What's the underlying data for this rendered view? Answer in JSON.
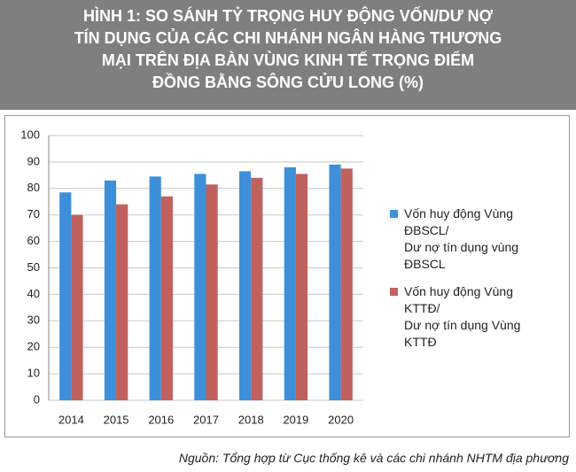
{
  "chart_data": {
    "type": "bar",
    "title": "HÌNH 1: SO SÁNH TỶ TRỌNG HUY ĐỘNG VỐN/DƯ NỢ\nTÍN DỤNG CỦA CÁC CHI NHÁNH NGÂN HÀNG THƯƠNG\nMẠI TRÊN ĐỊA BÀN VÙNG KINH TẾ TRỌNG ĐIỂM\nĐỒNG BẰNG SÔNG CỬU LONG (%)",
    "categories": [
      "2014",
      "2015",
      "2016",
      "2017",
      "2018",
      "2019",
      "2020"
    ],
    "series": [
      {
        "name": "Vốn huy động Vùng\nĐBSCL/\n  Dư nợ tín dụng vùng\nĐBSCL",
        "color": "#3d8fd9",
        "values": [
          78.5,
          83,
          84.5,
          85.5,
          86.5,
          88,
          89
        ]
      },
      {
        "name": "Vốn huy động Vùng\nKTTĐ/\n  Dư nợ tín dụng Vùng\nKTTĐ",
        "color": "#c0615e",
        "values": [
          70,
          74,
          77,
          81.5,
          84,
          85.5,
          87.5
        ]
      }
    ],
    "ylim": [
      0,
      100
    ],
    "yticks": [
      0,
      10,
      20,
      30,
      40,
      50,
      60,
      70,
      80,
      90,
      100
    ],
    "grid": true,
    "source": "Nguồn: Tổng hợp từ Cục thống kê và các chi nhánh NHTM địa phương"
  }
}
